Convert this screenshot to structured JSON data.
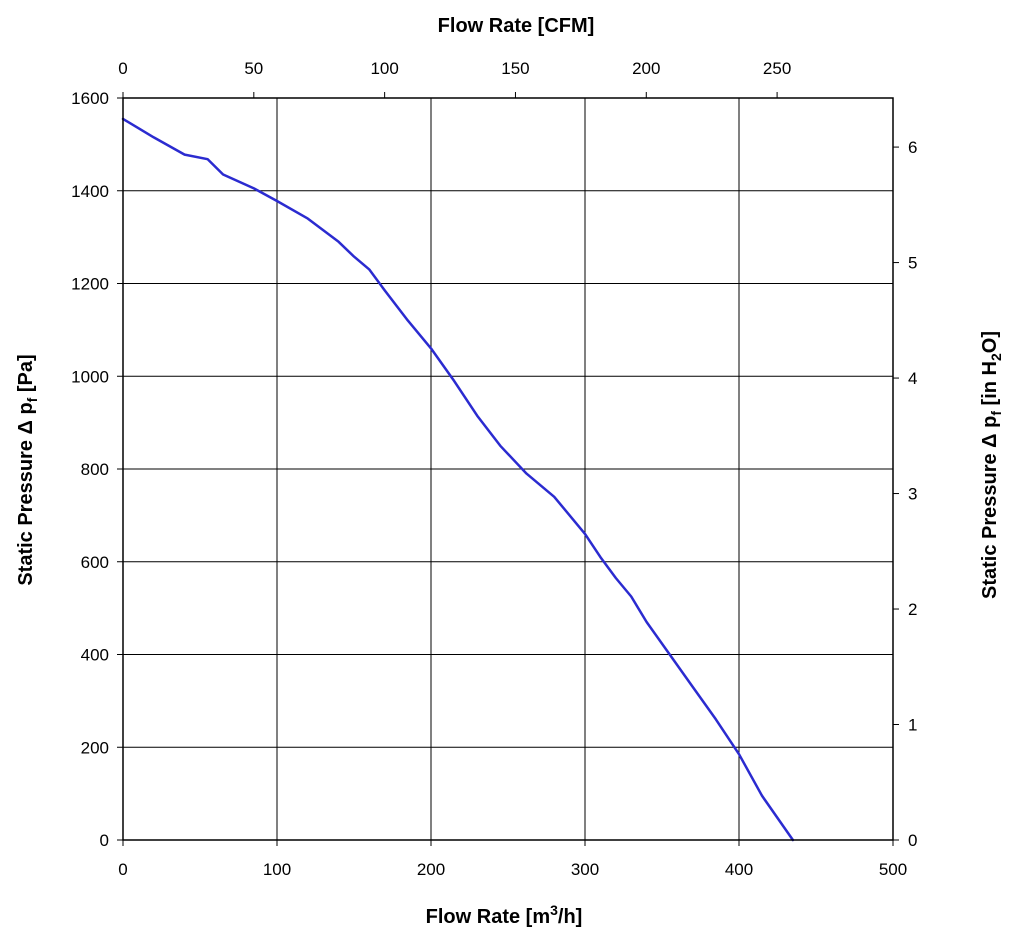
{
  "chart_data": {
    "type": "line",
    "title": "",
    "top_axis_title": "Flow Rate [CFM]",
    "bottom_axis_title": {
      "main": "Flow Rate [m",
      "sup": "3",
      "tail": "/h]"
    },
    "left_axis_title": {
      "main": "Static Pressure Δ p",
      "sub": "f",
      "tail": " [Pa]"
    },
    "right_axis_title": {
      "main": "Static Pressure Δ p",
      "sub1": "f",
      "mid": " [in H",
      "sub2": "2",
      "tail": "O]"
    },
    "x_primary": {
      "label": "Flow Rate [m3/h]",
      "min": 0,
      "max": 500,
      "ticks": [
        "0",
        "100",
        "200",
        "300",
        "400",
        "500"
      ]
    },
    "y_primary": {
      "label": "Static Pressure Δ pf [Pa]",
      "min": 0,
      "max": 1600,
      "ticks": [
        "0",
        "200",
        "400",
        "600",
        "800",
        "1000",
        "1200",
        "1400",
        "1600"
      ]
    },
    "x_secondary": {
      "label": "Flow Rate [CFM]",
      "min": 0,
      "max": 294.3,
      "ticks": [
        {
          "value": 0,
          "label": "0"
        },
        {
          "value": 50,
          "label": "50"
        },
        {
          "value": 100,
          "label": "100"
        },
        {
          "value": 150,
          "label": "150"
        },
        {
          "value": 200,
          "label": "200"
        },
        {
          "value": 250,
          "label": "250"
        }
      ]
    },
    "y_secondary": {
      "label": "Static Pressure Δ pf [in H2O]",
      "min": 0,
      "max": 6.425,
      "ticks": [
        {
          "value": 0,
          "label": "0"
        },
        {
          "value": 1,
          "label": "1"
        },
        {
          "value": 2,
          "label": "2"
        },
        {
          "value": 3,
          "label": "3"
        },
        {
          "value": 4,
          "label": "4"
        },
        {
          "value": 5,
          "label": "5"
        },
        {
          "value": 6,
          "label": "6"
        }
      ]
    },
    "grid": true,
    "series": [
      {
        "name": "Static Pressure",
        "color": "#2b2bd0",
        "x": [
          0,
          20,
          40,
          55,
          65,
          85,
          100,
          120,
          140,
          150,
          160,
          170,
          185,
          200,
          215,
          230,
          245,
          262,
          280,
          300,
          310,
          320,
          330,
          340,
          355,
          370,
          385,
          400,
          415,
          435
        ],
        "y": [
          1555,
          1515,
          1478,
          1468,
          1435,
          1405,
          1378,
          1340,
          1290,
          1258,
          1230,
          1185,
          1120,
          1060,
          990,
          915,
          850,
          790,
          740,
          660,
          610,
          565,
          525,
          470,
          400,
          330,
          260,
          185,
          95,
          0
        ]
      }
    ]
  }
}
